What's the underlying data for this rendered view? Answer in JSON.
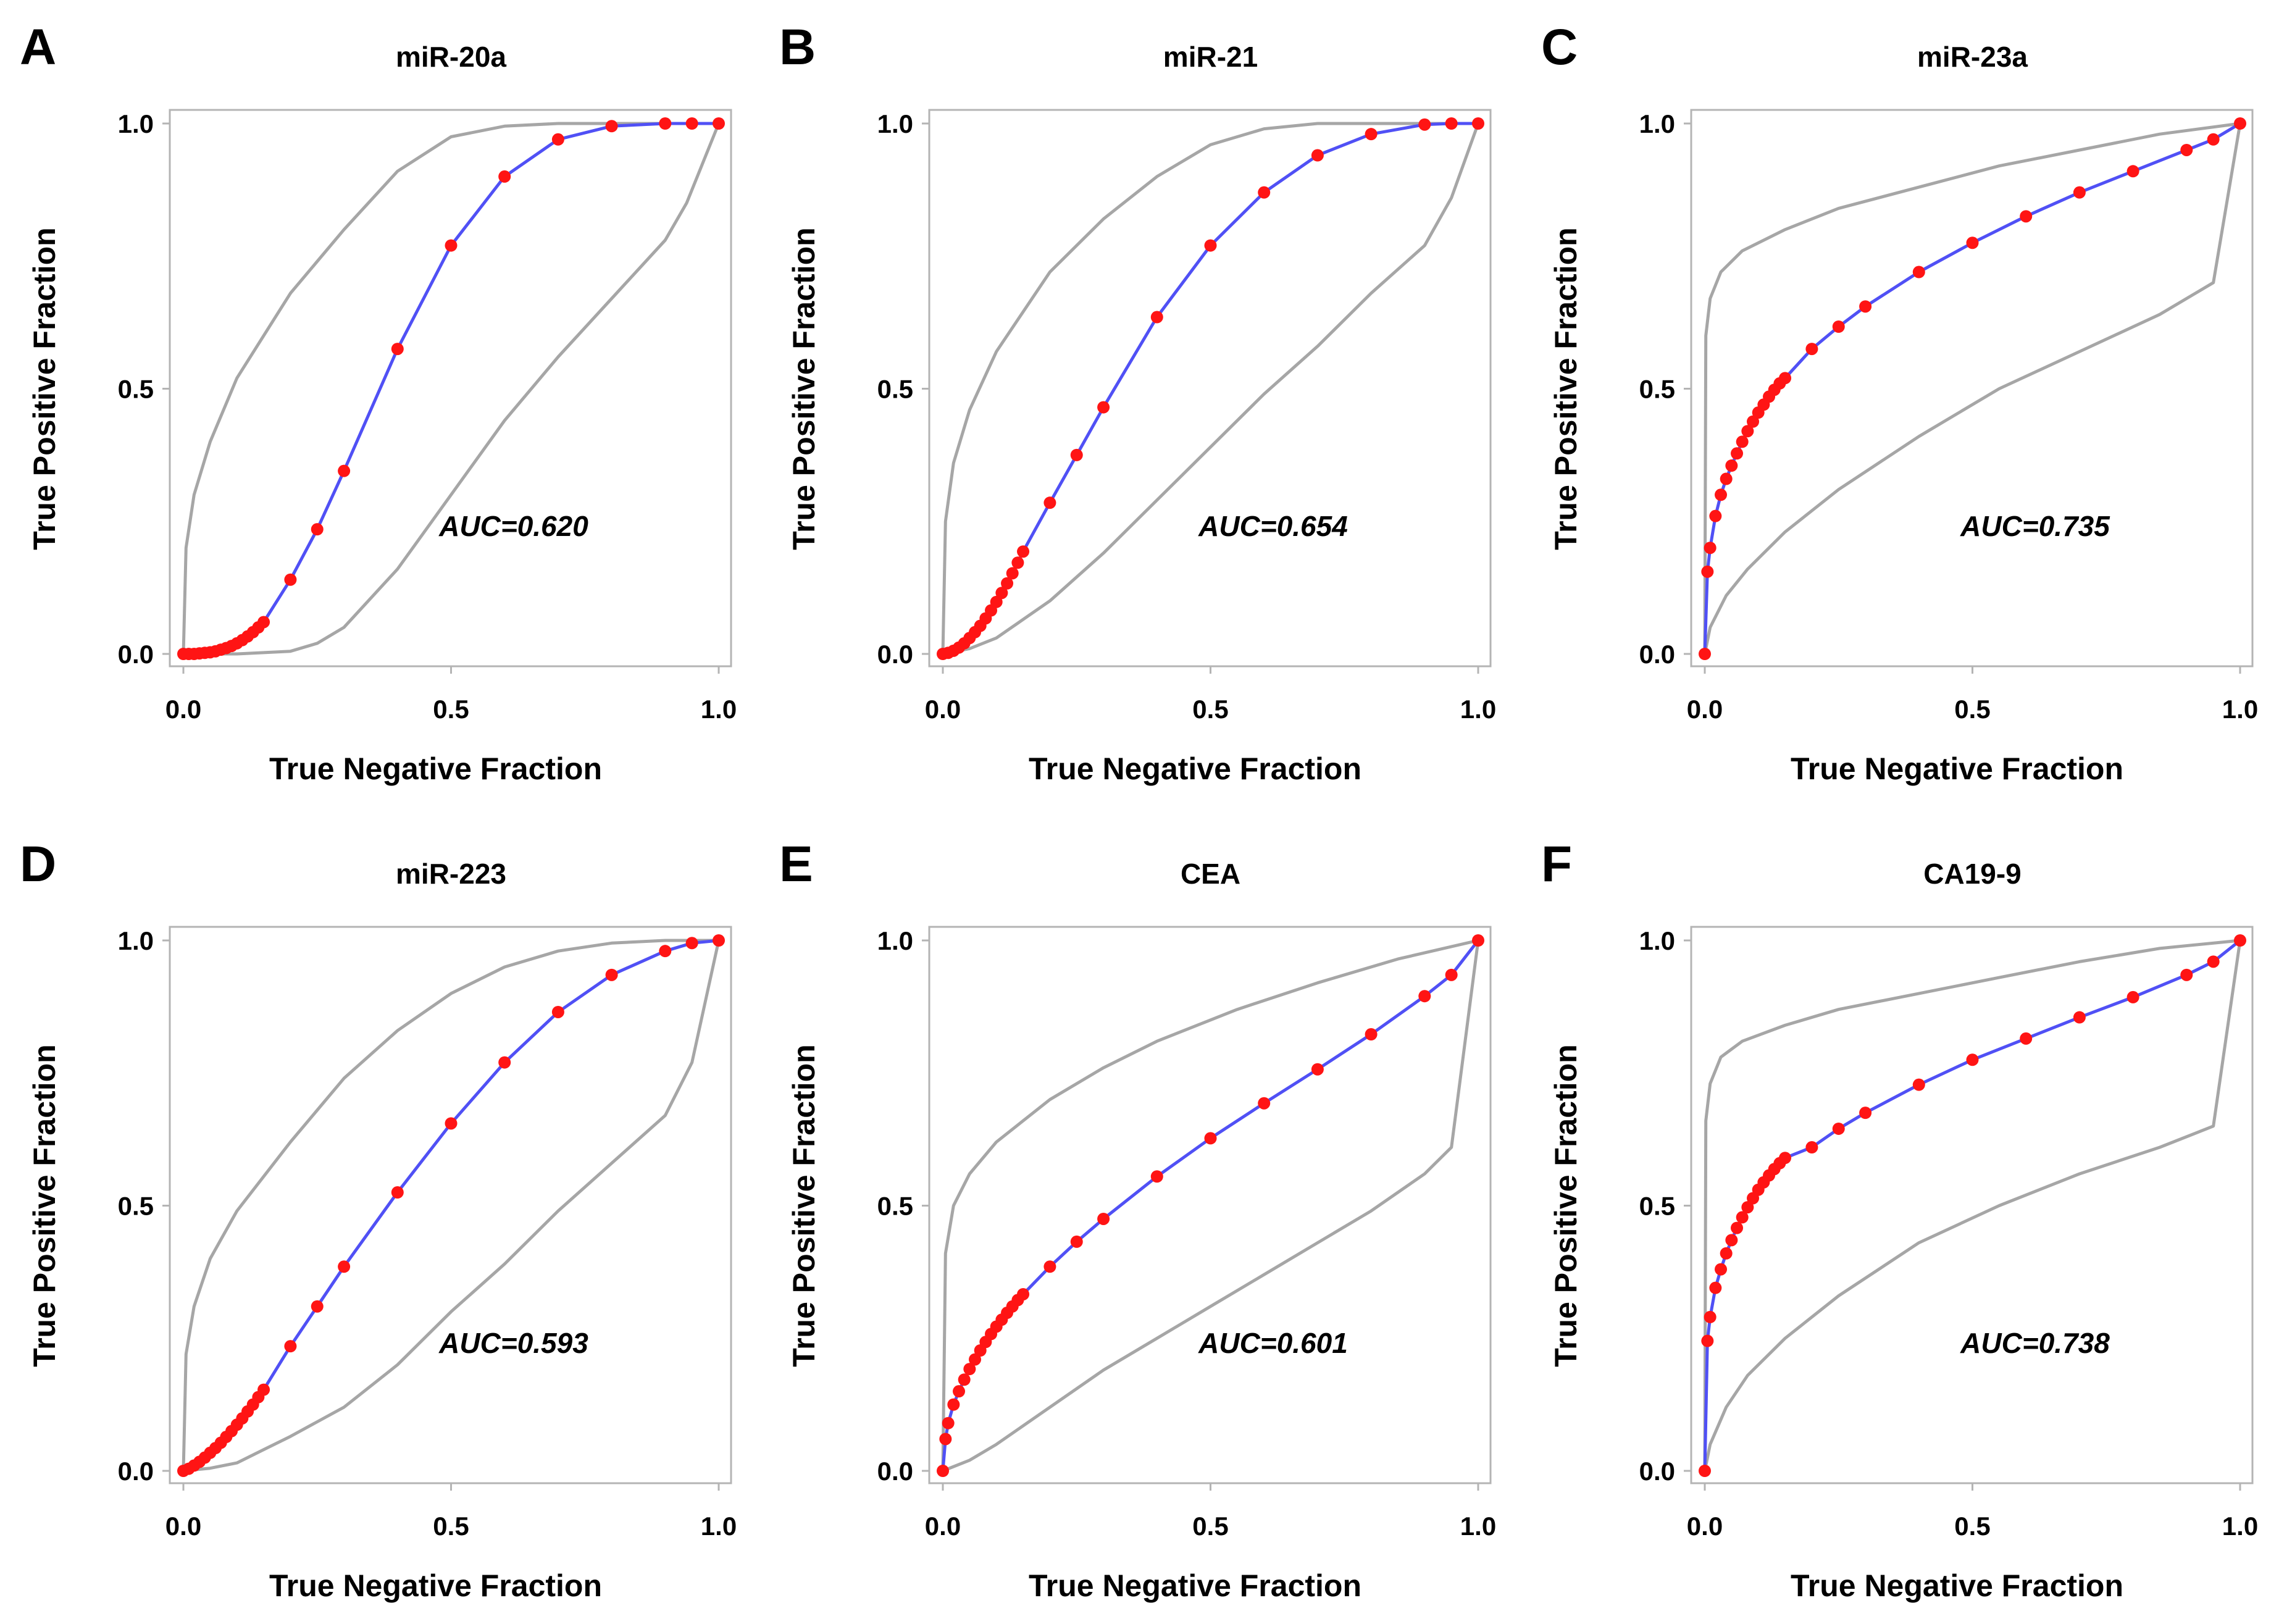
{
  "figure": {
    "panels": [
      "A",
      "B",
      "C",
      "D",
      "E",
      "F"
    ]
  },
  "colors": {
    "roc_line": "#5050f5",
    "roc_point": "#ff1414",
    "ci_band": "#a6a6a6",
    "frame": "#b4b4b4"
  },
  "chart_data": [
    {
      "panel": "A",
      "type": "line",
      "title": "miR-20a",
      "xlabel": "True Negative Fraction",
      "ylabel": "True Positive Fraction",
      "xlim": [
        0,
        1
      ],
      "ylim": [
        0,
        1
      ],
      "xticks": [
        "0.0",
        "0.5",
        "1.0"
      ],
      "yticks": [
        "0.0",
        "0.5",
        "1.0"
      ],
      "annotation": "AUC=0.620",
      "series": [
        {
          "name": "ROC",
          "x": [
            0.0,
            0.01,
            0.02,
            0.03,
            0.04,
            0.05,
            0.06,
            0.07,
            0.08,
            0.09,
            0.1,
            0.11,
            0.12,
            0.13,
            0.14,
            0.15,
            0.2,
            0.25,
            0.3,
            0.4,
            0.5,
            0.6,
            0.7,
            0.8,
            0.9,
            0.95,
            1.0
          ],
          "y": [
            0.0,
            0.0,
            0.0,
            0.001,
            0.002,
            0.003,
            0.005,
            0.008,
            0.011,
            0.015,
            0.02,
            0.026,
            0.033,
            0.041,
            0.05,
            0.06,
            0.14,
            0.235,
            0.345,
            0.575,
            0.77,
            0.9,
            0.97,
            0.995,
            1.0,
            1.0,
            1.0
          ]
        },
        {
          "name": "CI upper",
          "x": [
            0.0,
            0.005,
            0.02,
            0.05,
            0.1,
            0.2,
            0.3,
            0.4,
            0.5,
            0.6,
            0.7,
            0.8,
            0.9,
            1.0
          ],
          "y": [
            0.0,
            0.2,
            0.3,
            0.4,
            0.52,
            0.68,
            0.8,
            0.91,
            0.975,
            0.995,
            1.0,
            1.0,
            1.0,
            1.0
          ]
        },
        {
          "name": "CI lower",
          "x": [
            0.0,
            0.1,
            0.2,
            0.25,
            0.3,
            0.4,
            0.5,
            0.6,
            0.7,
            0.8,
            0.9,
            0.94,
            1.0
          ],
          "y": [
            0.0,
            0.0,
            0.005,
            0.02,
            0.05,
            0.16,
            0.3,
            0.44,
            0.56,
            0.67,
            0.78,
            0.85,
            1.0
          ]
        }
      ]
    },
    {
      "panel": "B",
      "type": "line",
      "title": "miR-21",
      "xlabel": "True Negative Fraction",
      "ylabel": "True Positive Fraction",
      "xlim": [
        0,
        1
      ],
      "ylim": [
        0,
        1
      ],
      "xticks": [
        "0.0",
        "0.5",
        "1.0"
      ],
      "yticks": [
        "0.0",
        "0.5",
        "1.0"
      ],
      "annotation": "AUC=0.654",
      "series": [
        {
          "name": "ROC",
          "x": [
            0.0,
            0.01,
            0.02,
            0.03,
            0.04,
            0.05,
            0.06,
            0.07,
            0.08,
            0.09,
            0.1,
            0.11,
            0.12,
            0.13,
            0.14,
            0.15,
            0.2,
            0.25,
            0.3,
            0.4,
            0.5,
            0.6,
            0.7,
            0.8,
            0.9,
            0.95,
            1.0
          ],
          "y": [
            0.0,
            0.002,
            0.006,
            0.012,
            0.02,
            0.03,
            0.041,
            0.053,
            0.067,
            0.082,
            0.098,
            0.115,
            0.133,
            0.152,
            0.172,
            0.193,
            0.285,
            0.375,
            0.465,
            0.635,
            0.77,
            0.87,
            0.94,
            0.98,
            0.998,
            1.0,
            1.0
          ]
        },
        {
          "name": "CI upper",
          "x": [
            0.0,
            0.005,
            0.02,
            0.05,
            0.1,
            0.2,
            0.3,
            0.4,
            0.5,
            0.6,
            0.7,
            0.8,
            0.9,
            1.0
          ],
          "y": [
            0.0,
            0.25,
            0.36,
            0.46,
            0.57,
            0.72,
            0.82,
            0.9,
            0.96,
            0.99,
            1.0,
            1.0,
            1.0,
            1.0
          ]
        },
        {
          "name": "CI lower",
          "x": [
            0.0,
            0.05,
            0.1,
            0.2,
            0.3,
            0.4,
            0.5,
            0.6,
            0.7,
            0.8,
            0.9,
            0.95,
            1.0
          ],
          "y": [
            0.0,
            0.01,
            0.03,
            0.1,
            0.19,
            0.29,
            0.39,
            0.49,
            0.58,
            0.68,
            0.77,
            0.86,
            1.0
          ]
        }
      ]
    },
    {
      "panel": "C",
      "type": "line",
      "title": "miR-23a",
      "xlabel": "True Negative Fraction",
      "ylabel": "True Positive Fraction",
      "xlim": [
        0,
        1
      ],
      "ylim": [
        0,
        1
      ],
      "xticks": [
        "0.0",
        "0.5",
        "1.0"
      ],
      "yticks": [
        "0.0",
        "0.5",
        "1.0"
      ],
      "annotation": "AUC=0.735",
      "series": [
        {
          "name": "ROC",
          "x": [
            0.0,
            0.005,
            0.01,
            0.02,
            0.03,
            0.04,
            0.05,
            0.06,
            0.07,
            0.08,
            0.09,
            0.1,
            0.11,
            0.12,
            0.13,
            0.14,
            0.15,
            0.2,
            0.25,
            0.3,
            0.4,
            0.5,
            0.6,
            0.7,
            0.8,
            0.9,
            0.95,
            1.0
          ],
          "y": [
            0.0,
            0.155,
            0.2,
            0.26,
            0.3,
            0.33,
            0.355,
            0.378,
            0.4,
            0.42,
            0.438,
            0.455,
            0.47,
            0.485,
            0.498,
            0.51,
            0.52,
            0.575,
            0.617,
            0.655,
            0.72,
            0.775,
            0.825,
            0.87,
            0.91,
            0.95,
            0.97,
            1.0
          ]
        },
        {
          "name": "CI upper",
          "x": [
            0.0,
            0.002,
            0.01,
            0.03,
            0.07,
            0.15,
            0.25,
            0.4,
            0.55,
            0.7,
            0.85,
            1.0
          ],
          "y": [
            0.0,
            0.6,
            0.67,
            0.72,
            0.76,
            0.8,
            0.84,
            0.88,
            0.92,
            0.95,
            0.98,
            1.0
          ]
        },
        {
          "name": "CI lower",
          "x": [
            0.0,
            0.01,
            0.04,
            0.08,
            0.15,
            0.25,
            0.4,
            0.55,
            0.7,
            0.85,
            0.95,
            1.0
          ],
          "y": [
            0.0,
            0.05,
            0.11,
            0.16,
            0.23,
            0.31,
            0.41,
            0.5,
            0.57,
            0.64,
            0.7,
            1.0
          ]
        }
      ]
    },
    {
      "panel": "D",
      "type": "line",
      "title": "miR-223",
      "xlabel": "True Negative Fraction",
      "ylabel": "True Positive Fraction",
      "xlim": [
        0,
        1
      ],
      "ylim": [
        0,
        1
      ],
      "xticks": [
        "0.0",
        "0.5",
        "1.0"
      ],
      "yticks": [
        "0.0",
        "0.5",
        "1.0"
      ],
      "annotation": "AUC=0.593",
      "series": [
        {
          "name": "ROC",
          "x": [
            0.0,
            0.01,
            0.02,
            0.03,
            0.04,
            0.05,
            0.06,
            0.07,
            0.08,
            0.09,
            0.1,
            0.11,
            0.12,
            0.13,
            0.14,
            0.15,
            0.2,
            0.25,
            0.3,
            0.4,
            0.5,
            0.6,
            0.7,
            0.8,
            0.9,
            0.95,
            1.0
          ],
          "y": [
            0.0,
            0.004,
            0.01,
            0.017,
            0.025,
            0.034,
            0.043,
            0.053,
            0.064,
            0.075,
            0.087,
            0.099,
            0.112,
            0.125,
            0.139,
            0.153,
            0.235,
            0.31,
            0.385,
            0.525,
            0.655,
            0.77,
            0.865,
            0.935,
            0.98,
            0.995,
            1.0
          ]
        },
        {
          "name": "CI upper",
          "x": [
            0.0,
            0.005,
            0.02,
            0.05,
            0.1,
            0.2,
            0.3,
            0.4,
            0.5,
            0.6,
            0.7,
            0.8,
            0.9,
            1.0
          ],
          "y": [
            0.0,
            0.22,
            0.31,
            0.4,
            0.49,
            0.62,
            0.74,
            0.83,
            0.9,
            0.95,
            0.98,
            0.995,
            1.0,
            1.0
          ]
        },
        {
          "name": "CI lower",
          "x": [
            0.0,
            0.05,
            0.1,
            0.15,
            0.2,
            0.3,
            0.4,
            0.5,
            0.6,
            0.7,
            0.8,
            0.9,
            0.95,
            1.0
          ],
          "y": [
            0.0,
            0.005,
            0.015,
            0.04,
            0.065,
            0.12,
            0.2,
            0.3,
            0.39,
            0.49,
            0.58,
            0.67,
            0.77,
            1.0
          ]
        }
      ]
    },
    {
      "panel": "E",
      "type": "line",
      "title": "CEA",
      "xlabel": "True Negative Fraction",
      "ylabel": "True Positive Fraction",
      "xlim": [
        0,
        1
      ],
      "ylim": [
        0,
        1
      ],
      "xticks": [
        "0.0",
        "0.5",
        "1.0"
      ],
      "yticks": [
        "0.0",
        "0.5",
        "1.0"
      ],
      "annotation": "AUC=0.601",
      "series": [
        {
          "name": "ROC",
          "x": [
            0.0,
            0.005,
            0.01,
            0.02,
            0.03,
            0.04,
            0.05,
            0.06,
            0.07,
            0.08,
            0.09,
            0.1,
            0.11,
            0.12,
            0.13,
            0.14,
            0.15,
            0.2,
            0.25,
            0.3,
            0.4,
            0.5,
            0.6,
            0.7,
            0.8,
            0.9,
            0.95,
            1.0
          ],
          "y": [
            0.0,
            0.06,
            0.09,
            0.125,
            0.15,
            0.172,
            0.192,
            0.21,
            0.227,
            0.243,
            0.258,
            0.272,
            0.285,
            0.298,
            0.31,
            0.322,
            0.333,
            0.385,
            0.432,
            0.475,
            0.555,
            0.627,
            0.693,
            0.757,
            0.823,
            0.895,
            0.935,
            1.0
          ]
        },
        {
          "name": "CI upper",
          "x": [
            0.0,
            0.005,
            0.02,
            0.05,
            0.1,
            0.2,
            0.3,
            0.4,
            0.55,
            0.7,
            0.85,
            1.0
          ],
          "y": [
            0.0,
            0.41,
            0.5,
            0.56,
            0.62,
            0.7,
            0.76,
            0.81,
            0.87,
            0.92,
            0.965,
            1.0
          ]
        },
        {
          "name": "CI lower",
          "x": [
            0.0,
            0.05,
            0.1,
            0.2,
            0.3,
            0.4,
            0.5,
            0.6,
            0.7,
            0.8,
            0.9,
            0.95,
            1.0
          ],
          "y": [
            0.0,
            0.02,
            0.05,
            0.12,
            0.19,
            0.25,
            0.31,
            0.37,
            0.43,
            0.49,
            0.56,
            0.61,
            1.0
          ]
        }
      ]
    },
    {
      "panel": "F",
      "type": "line",
      "title": "CA19-9",
      "xlabel": "True Negative Fraction",
      "ylabel": "True Positive Fraction",
      "xlim": [
        0,
        1
      ],
      "ylim": [
        0,
        1
      ],
      "xticks": [
        "0.0",
        "0.5",
        "1.0"
      ],
      "yticks": [
        "0.0",
        "0.5",
        "1.0"
      ],
      "annotation": "AUC=0.738",
      "series": [
        {
          "name": "ROC",
          "x": [
            0.0,
            0.005,
            0.01,
            0.02,
            0.03,
            0.04,
            0.05,
            0.06,
            0.07,
            0.08,
            0.09,
            0.1,
            0.11,
            0.12,
            0.13,
            0.14,
            0.15,
            0.2,
            0.25,
            0.3,
            0.4,
            0.5,
            0.6,
            0.7,
            0.8,
            0.9,
            0.95,
            1.0
          ],
          "y": [
            0.0,
            0.245,
            0.29,
            0.345,
            0.38,
            0.41,
            0.435,
            0.458,
            0.478,
            0.497,
            0.514,
            0.53,
            0.544,
            0.557,
            0.569,
            0.58,
            0.59,
            0.61,
            0.645,
            0.675,
            0.728,
            0.775,
            0.815,
            0.855,
            0.893,
            0.935,
            0.96,
            1.0
          ]
        },
        {
          "name": "CI upper",
          "x": [
            0.0,
            0.002,
            0.01,
            0.03,
            0.07,
            0.15,
            0.25,
            0.4,
            0.55,
            0.7,
            0.85,
            1.0
          ],
          "y": [
            0.0,
            0.66,
            0.73,
            0.78,
            0.81,
            0.84,
            0.87,
            0.9,
            0.93,
            0.96,
            0.985,
            1.0
          ]
        },
        {
          "name": "CI lower",
          "x": [
            0.0,
            0.01,
            0.04,
            0.08,
            0.15,
            0.25,
            0.4,
            0.55,
            0.7,
            0.85,
            0.95,
            1.0
          ],
          "y": [
            0.0,
            0.05,
            0.12,
            0.18,
            0.25,
            0.33,
            0.43,
            0.5,
            0.56,
            0.61,
            0.65,
            1.0
          ]
        }
      ]
    }
  ]
}
